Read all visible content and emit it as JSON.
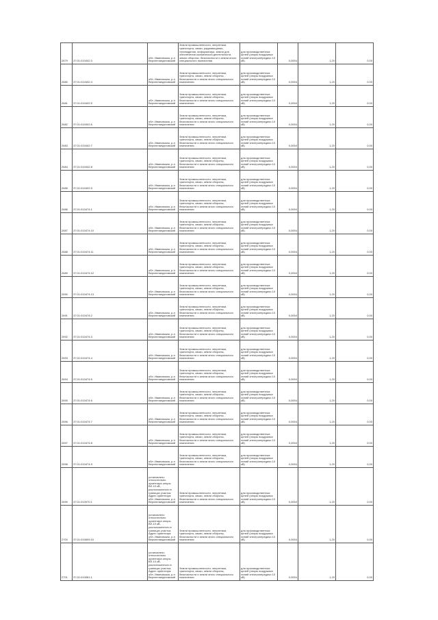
{
  "table": {
    "rows": [
      [
        "2679",
        "37:01:010402:3",
        "обл. Ивановская, р-н Верхнеландеховский",
        "Земли промышленности, энергетики, транспорта, связи, радиовещания, телевидения, информатики, земли для обеспечения космической деятельности, земли обороны, безопасности и земли иного специального назначения",
        "для производственных целей (опоры воздушных линий электропередачи 10 кВ)",
        "0,0004",
        "1,20",
        "0,00"
      ],
      [
        "2680",
        "37:01:010402:4",
        "обл. Ивановская, р-н Верхнеландеховский",
        "Земли промышленности, энергетики, транспорта, связи, земли обороны, безопасности и земли иного специального назначения",
        "для производственных целей (опоры воздушных линий электропередачи 10 кВ)",
        "0,0004",
        "1,20",
        "0,00"
      ],
      [
        "2681",
        "37:01:010402:5",
        "обл. Ивановская, р-н Верхнеландеховский",
        "Земли промышленности, энергетики, транспорта, связи, земли обороны, безопасности и земли иного специального назначения",
        "для производственных целей (опоры воздушных линий электропередачи 10 кВ)",
        "0,0004",
        "1,20",
        "0,00"
      ],
      [
        "2682",
        "37:01:010402:6",
        "обл. Ивановская, р-н Верхнеландеховский",
        "Земли промышленности, энергетики, транспорта, связи, земли обороны, безопасности и земли иного специального назначения",
        "для производственных целей (опоры воздушных линий электропередачи 10 кВ)",
        "0,0004",
        "1,20",
        "0,00"
      ],
      [
        "2683",
        "37:01:010402:7",
        "обл. Ивановская, р-н Верхнеландеховский",
        "Земли промышленности, энергетики, транспорта, связи, земли обороны, безопасности и земли иного специального назначения",
        "для производственных целей (опоры воздушных линий электропередачи 10 кВ)",
        "0,0004",
        "1,20",
        "0,00"
      ],
      [
        "2684",
        "37:01:010402:8",
        "обл. Ивановская, р-н Верхнеландеховский",
        "Земли промышленности, энергетики, транспорта, связи, земли обороны, безопасности и земли иного специального назначения",
        "для производственных целей (опоры воздушных линий электропередачи 10 кВ)",
        "0,0004",
        "1,20",
        "0,00"
      ],
      [
        "2685",
        "37:01:010402:9",
        "обл. Ивановская, р-н Верхнеландеховский",
        "Земли промышленности, энергетики, транспорта, связи, земли обороны, безопасности и земли иного специального назначения",
        "для производственных целей (опоры воздушных линий электропередачи 10 кВ)",
        "0,0004",
        "1,20",
        "0,00"
      ],
      [
        "2686",
        "37:01:010474:1",
        "обл. Ивановская, р-н Верхнеландеховский",
        "Земли промышленности, энергетики, транспорта, связи, земли обороны, безопасности и земли иного специального назначения",
        "для производственных целей (опоры воздушных линий электропередачи 10 кВ)",
        "0,0004",
        "1,20",
        "0,00"
      ],
      [
        "2687",
        "37:01:010474:10",
        "обл. Ивановская, р-н Верхнеландеховский",
        "Земли промышленности, энергетики, транспорта, связи, земли обороны, безопасности и земли иного специального назначения",
        "для производственных целей (опоры воздушных линий электропередачи 10 кВ)",
        "0,0004",
        "1,20",
        "0,00"
      ],
      [
        "2688",
        "37:01:010474:11",
        "обл. Ивановская, р-н Верхнеландеховский",
        "Земли промышленности, энергетики, транспорта, связи, земли обороны, безопасности и земли иного специального назначения",
        "для производственных целей (опоры воздушных линий электропередачи 10 кВ)",
        "0,0004",
        "1,20",
        "0,00"
      ],
      [
        "2689",
        "37:01:010474:12",
        "обл. Ивановская, р-н Верхнеландеховский",
        "Земли промышленности, энергетики, транспорта, связи, земли обороны, безопасности и земли иного специального назначения",
        "для производственных целей (опоры воздушных линий электропередачи 10 кВ)",
        "0,0004",
        "1,20",
        "0,00"
      ],
      [
        "2690",
        "37:01:010474:13",
        "обл. Ивановская, р-н Верхнеландеховский",
        "Земли промышленности, энергетики, транспорта, связи, земли обороны, безопасности и земли иного специального назначения",
        "для производственных целей (опоры воздушных линий электропередачи 10 кВ)",
        "0,0004",
        "1,20",
        "0,00"
      ],
      [
        "2691",
        "37:01:010474:2",
        "обл. Ивановская, р-н Верхнеландеховский",
        "Земли промышленности, энергетики, транспорта, связи, земли обороны, безопасности и земли иного специального назначения",
        "для производственных целей (опоры воздушных линий электропередачи 10 кВ)",
        "0,0004",
        "1,20",
        "0,00"
      ],
      [
        "2692",
        "37:01:010474:3",
        "обл. Ивановская, р-н Верхнеландеховский",
        "Земли промышленности, энергетики, транспорта, связи, земли обороны, безопасности и земли иного специального назначения",
        "для производственных целей (опоры воздушных линий электропередачи 10 кВ)",
        "0,0004",
        "1,20",
        "0,00"
      ],
      [
        "2693",
        "37:01:010474:4",
        "обл. Ивановская, р-н Верхнеландеховский",
        "Земли промышленности, энергетики, транспорта, связи, земли обороны, безопасности и земли иного специального назначения",
        "для производственных целей (опоры воздушных линий электропередачи 10 кВ)",
        "0,0004",
        "1,20",
        "0,00"
      ],
      [
        "2694",
        "37:01:010474:5",
        "обл. Ивановская, р-н Верхнеландеховский",
        "Земли промышленности, энергетики, транспорта, связи, земли обороны, безопасности и земли иного специального назначения",
        "для производственных целей (опоры воздушных линий электропередачи 10 кВ)",
        "0,0004",
        "1,20",
        "0,00"
      ],
      [
        "2695",
        "37:01:010474:6",
        "обл. Ивановская, р-н Верхнеландеховский",
        "Земли промышленности, энергетики, транспорта, связи, земли обороны, безопасности и земли иного специального назначения",
        "для производственных целей (опоры воздушных линий электропередачи 10 кВ)",
        "0,0004",
        "1,20",
        "0,00"
      ],
      [
        "2696",
        "37:01:010474:7",
        "обл. Ивановская, р-н Верхнеландеховский",
        "Земли промышленности, энергетики, транспорта, связи, земли обороны, безопасности и земли иного специального назначения",
        "для производственных целей (опоры воздушных линий электропередачи 10 кВ)",
        "0,0004",
        "1,20",
        "0,00"
      ],
      [
        "2697",
        "37:01:010474:8",
        "обл. Ивановская, р-н Верхнеландеховский",
        "Земли промышленности, энергетики, транспорта, связи, земли обороны, безопасности и земли иного специального назначения",
        "для производственных целей (опоры воздушных линий электропередачи 10 кВ)",
        "0,0004",
        "1,20",
        "0,00"
      ],
      [
        "2698",
        "37:01:010474:9",
        "обл. Ивановская, р-н Верхнеландеховский",
        "Земли промышленности, энергетики, транспорта, связи, земли обороны, безопасности и земли иного специального назначения",
        "для производственных целей (опоры воздушных линий электропередачи 10 кВ)",
        "0,0004",
        "1,20",
        "0,00"
      ],
      [
        "2699",
        "37:01:010970:1",
        "установлено относительно ориентира опоры ВЛ-10 кВ, расположенного в границах участка. Адрес ориентира: обл. Ивановская, р-н Верхнеландеховский",
        "Земли промышленности, энергетики, транспорта, связи, земли обороны, безопасности и земли иного специального назначения",
        "для производственных целей (опоры воздушных линий электропередачи 10 кВ)",
        "0,0004",
        "1,20",
        "0,00"
      ],
      [
        "2700",
        "37:01:010609:10",
        "установлено относительно ориентира опоры ВЛ-10 кВ, расположенного в границах участка. Адрес ориентира: обл. Ивановская, р-н Верхнеландеховский",
        "Земли промышленности, энергетики, транспорта, связи, земли обороны, безопасности и земли иного специального назначения",
        "для производственных целей (опоры воздушных линий электропередачи 10 кВ)",
        "0,0004",
        "1,20",
        "0,00"
      ],
      [
        "2701",
        "37:01:010961:1",
        "установлено относительно ориентира опоры ВЛ-10 кВ, расположенного в границах участка. Адрес ориентира: обл. Ивановская, р-н Верхнеландеховский",
        "Земли промышленности, энергетики, транспорта, связи, земли обороны, безопасности и земли иного специального назначения",
        "для производственных целей (опоры воздушных линий электропередачи 10 кВ)",
        "0,0004",
        "1,20",
        "0,00"
      ]
    ]
  }
}
